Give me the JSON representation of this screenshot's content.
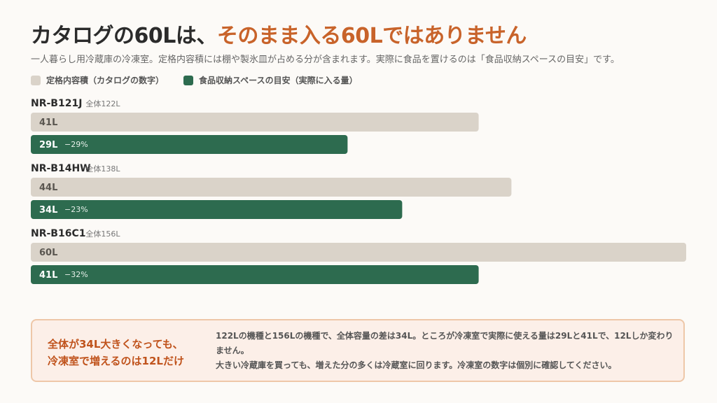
{
  "header": {
    "title_main": "カタログの60Lは、",
    "title_accent": "そのまま入る60Lではありません",
    "subtitle": "一人暮らし用冷蔵庫の冷凍室。定格内容積には棚や製氷皿が占める分が含まれます。実際に食品を置けるのは「食品収納スペースの目安」です。"
  },
  "legend": {
    "rated": "定格内容積（カタログの数字）",
    "usable": "食品収納スペースの目安（実際に入る量）"
  },
  "colors": {
    "rated": "#dad3c9",
    "usable": "#2d6b4f",
    "accent": "#c8632a"
  },
  "chart_data": {
    "type": "bar",
    "orientation": "horizontal",
    "categories": [
      "NR-B121J",
      "NR-B14HW",
      "NR-B16C1"
    ],
    "totals": [
      "全体122L",
      "全体138L",
      "全体156L"
    ],
    "series": [
      {
        "name": "定格内容積（カタログの数字）",
        "values": [
          41,
          44,
          60
        ],
        "labels": [
          "41L",
          "44L",
          "60L"
        ]
      },
      {
        "name": "食品収納スペースの目安（実際に入る量）",
        "values": [
          29,
          34,
          41
        ],
        "labels": [
          "29L",
          "34L",
          "41L"
        ]
      }
    ],
    "deltas": [
      "−29%",
      "−23%",
      "−32%"
    ],
    "xlim": [
      0,
      60
    ]
  },
  "callout": {
    "headline_1": "全体が34L大きくなっても、",
    "headline_2": "冷凍室で増えるのは12Lだけ",
    "body_1": "122Lの機種と156Lの機種で、全体容量の差は34L。ところが冷凍室で実際に使える量は29Lと41Lで、12Lしか変わりません。",
    "body_2": "大きい冷蔵庫を買っても、増えた分の多くは冷蔵室に回ります。冷凍室の数字は個別に確認してください。"
  }
}
